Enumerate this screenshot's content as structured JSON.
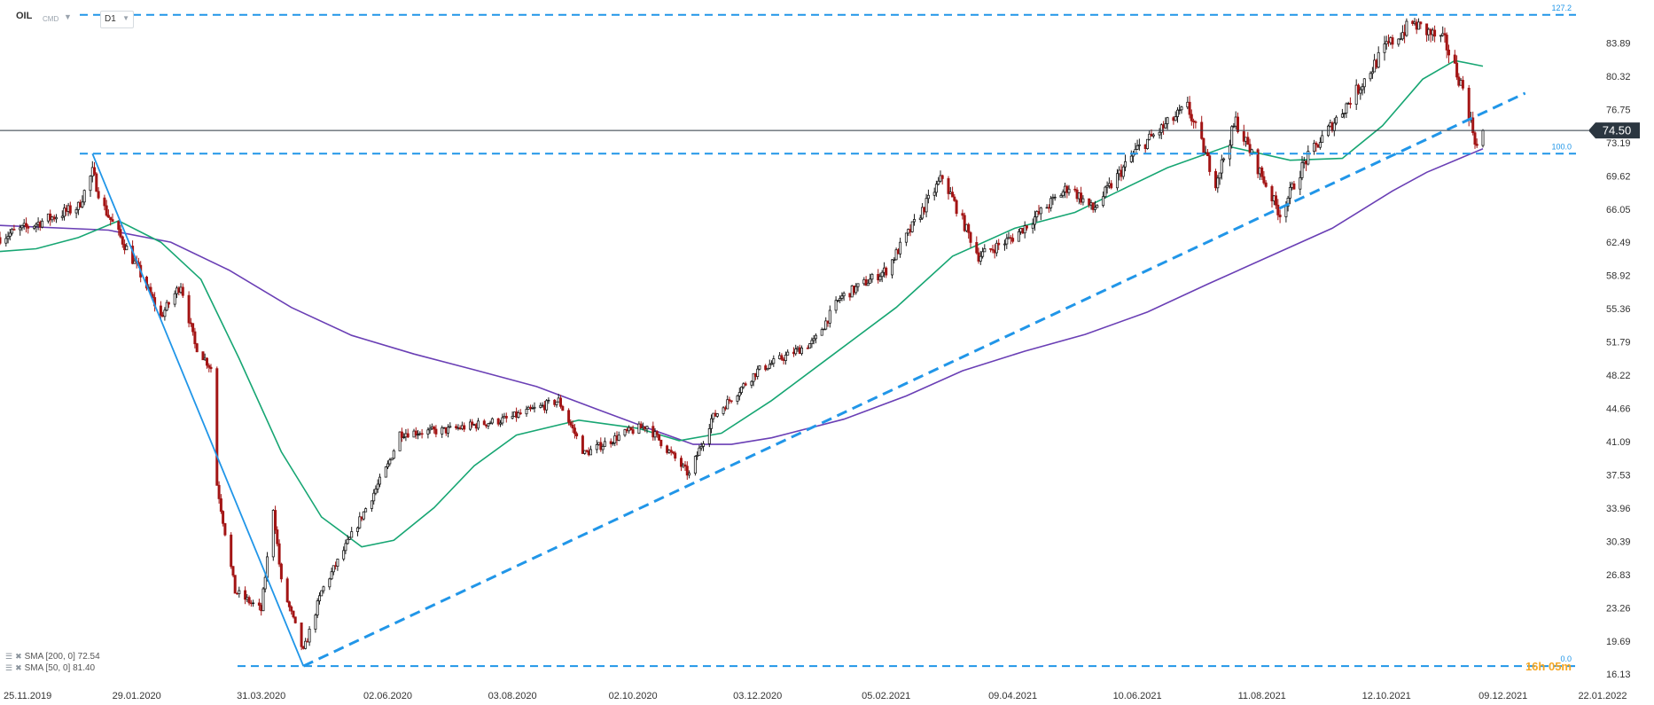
{
  "header": {
    "symbol": "OIL",
    "market": "CMD",
    "timeframe": "D1",
    "symbol_dropdown_icon": "chevron-down-icon",
    "timeframe_dropdown_icon": "chevron-down-icon"
  },
  "legend": [
    {
      "label": "SMA [200, 0] 72.54",
      "color": "#6a3fb5",
      "icons": [
        "settings-icon",
        "close-icon"
      ]
    },
    {
      "label": "SMA [50, 0] 81.40",
      "color": "#17a673",
      "icons": [
        "settings-icon",
        "close-icon"
      ]
    }
  ],
  "timer_overlay": "16h 05m",
  "colors": {
    "bull_candle": "#1b1b1b",
    "bear_candle": "#a31515",
    "sma200": "#6a3fb5",
    "sma50": "#17a673",
    "fib_lines": "#2196e8",
    "trend_line": "#2196e8",
    "price_line": "#2b3640",
    "price_badge_bg": "#2b3640",
    "price_badge_text": "#ffffff",
    "axis_text": "#333333",
    "timer_text": "#f5a623"
  },
  "chart_data": {
    "type": "candlestick",
    "instrument": "OIL",
    "timeframe": "D1",
    "x_type": "date",
    "x_range": [
      "2019-11-22",
      "2022-01-24"
    ],
    "y_range": [
      15.2,
      88.5
    ],
    "x_tick_labels": [
      "25.11.2019",
      "29.01.2020",
      "31.03.2020",
      "02.06.2020",
      "03.08.2020",
      "02.10.2020",
      "03.12.2020",
      "05.02.2021",
      "09.04.2021",
      "10.06.2021",
      "11.08.2021",
      "12.10.2021",
      "09.12.2021",
      "22.01.2022"
    ],
    "x_tick_values": [
      "2019-11-25",
      "2020-01-29",
      "2020-03-31",
      "2020-06-02",
      "2020-08-03",
      "2020-10-02",
      "2020-12-03",
      "2021-02-05",
      "2021-04-09",
      "2021-06-10",
      "2021-08-11",
      "2021-10-12",
      "2021-12-09",
      "2022-01-22"
    ],
    "y_tick_labels": [
      "83.89",
      "80.32",
      "76.75",
      "73.19",
      "69.62",
      "66.05",
      "62.49",
      "58.92",
      "55.36",
      "51.79",
      "48.22",
      "44.66",
      "41.09",
      "37.53",
      "33.96",
      "30.39",
      "26.83",
      "23.26",
      "19.69",
      "16.13"
    ],
    "y_tick_values": [
      83.89,
      80.32,
      76.75,
      73.19,
      69.62,
      66.05,
      62.49,
      58.92,
      55.36,
      51.79,
      48.22,
      44.66,
      41.09,
      37.53,
      33.96,
      30.39,
      26.83,
      23.26,
      19.69,
      16.13
    ],
    "current_price": 74.5,
    "price_path": [
      [
        "2019-11-22",
        63.0
      ],
      [
        "2019-12-10",
        64.5
      ],
      [
        "2019-12-31",
        66.3
      ],
      [
        "2020-01-07",
        70.0
      ],
      [
        "2020-01-12",
        66.5
      ],
      [
        "2020-01-30",
        59.5
      ],
      [
        "2020-02-10",
        54.5
      ],
      [
        "2020-02-20",
        58.0
      ],
      [
        "2020-02-27",
        51.5
      ],
      [
        "2020-03-06",
        49.0
      ],
      [
        "2020-03-09",
        36.5
      ],
      [
        "2020-03-18",
        25.0
      ],
      [
        "2020-03-31",
        23.0
      ],
      [
        "2020-04-06",
        34.0
      ],
      [
        "2020-04-10",
        26.0
      ],
      [
        "2020-04-21",
        18.5
      ],
      [
        "2020-04-30",
        25.0
      ],
      [
        "2020-05-15",
        31.0
      ],
      [
        "2020-06-02",
        38.5
      ],
      [
        "2020-06-08",
        42.0
      ],
      [
        "2020-07-01",
        42.3
      ],
      [
        "2020-07-31",
        43.5
      ],
      [
        "2020-08-26",
        45.5
      ],
      [
        "2020-09-08",
        39.8
      ],
      [
        "2020-09-28",
        42.0
      ],
      [
        "2020-10-09",
        42.8
      ],
      [
        "2020-10-30",
        37.5
      ],
      [
        "2020-11-10",
        43.5
      ],
      [
        "2020-12-03",
        48.7
      ],
      [
        "2020-12-31",
        51.8
      ],
      [
        "2021-01-13",
        56.5
      ],
      [
        "2021-02-05",
        59.5
      ],
      [
        "2021-03-05",
        69.5
      ],
      [
        "2021-03-23",
        61.0
      ],
      [
        "2021-04-09",
        63.0
      ],
      [
        "2021-05-07",
        68.5
      ],
      [
        "2021-05-19",
        66.0
      ],
      [
        "2021-06-10",
        72.5
      ],
      [
        "2021-07-05",
        77.0
      ],
      [
        "2021-07-19",
        69.0
      ],
      [
        "2021-07-29",
        75.5
      ],
      [
        "2021-08-20",
        65.5
      ],
      [
        "2021-09-01",
        71.0
      ],
      [
        "2021-09-28",
        79.0
      ],
      [
        "2021-10-12",
        83.5
      ],
      [
        "2021-10-25",
        86.0
      ],
      [
        "2021-11-10",
        84.0
      ],
      [
        "2021-11-19",
        79.0
      ],
      [
        "2021-11-26",
        72.7
      ],
      [
        "2021-11-29",
        74.5
      ]
    ],
    "series": [
      {
        "name": "SMA [200, 0] 72.54",
        "points": [
          [
            "2019-11-22",
            64.3
          ],
          [
            "2020-01-15",
            63.8
          ],
          [
            "2020-02-15",
            62.5
          ],
          [
            "2020-03-15",
            59.5
          ],
          [
            "2020-04-15",
            55.5
          ],
          [
            "2020-05-15",
            52.5
          ],
          [
            "2020-06-15",
            50.5
          ],
          [
            "2020-07-15",
            48.8
          ],
          [
            "2020-08-15",
            47.0
          ],
          [
            "2020-09-15",
            44.5
          ],
          [
            "2020-10-10",
            42.5
          ],
          [
            "2020-11-01",
            40.8
          ],
          [
            "2020-11-20",
            40.8
          ],
          [
            "2020-12-10",
            41.5
          ],
          [
            "2021-01-15",
            43.5
          ],
          [
            "2021-02-15",
            46.0
          ],
          [
            "2021-03-15",
            48.7
          ],
          [
            "2021-04-15",
            50.8
          ],
          [
            "2021-05-15",
            52.6
          ],
          [
            "2021-06-15",
            55.0
          ],
          [
            "2021-07-15",
            58.0
          ],
          [
            "2021-08-15",
            61.0
          ],
          [
            "2021-09-15",
            64.0
          ],
          [
            "2021-10-15",
            68.0
          ],
          [
            "2021-11-01",
            70.0
          ],
          [
            "2021-11-29",
            72.54
          ]
        ]
      },
      {
        "name": "SMA [50, 0] 81.40",
        "points": [
          [
            "2019-11-22",
            61.5
          ],
          [
            "2019-12-10",
            61.8
          ],
          [
            "2019-12-31",
            63.0
          ],
          [
            "2020-01-20",
            64.8
          ],
          [
            "2020-02-10",
            62.5
          ],
          [
            "2020-03-01",
            58.5
          ],
          [
            "2020-03-20",
            50.0
          ],
          [
            "2020-04-10",
            40.0
          ],
          [
            "2020-04-30",
            33.0
          ],
          [
            "2020-05-20",
            29.8
          ],
          [
            "2020-06-05",
            30.5
          ],
          [
            "2020-06-25",
            34.0
          ],
          [
            "2020-07-15",
            38.5
          ],
          [
            "2020-08-05",
            41.8
          ],
          [
            "2020-09-05",
            43.4
          ],
          [
            "2020-10-05",
            42.5
          ],
          [
            "2020-10-25",
            41.2
          ],
          [
            "2020-11-15",
            42.0
          ],
          [
            "2020-12-10",
            45.5
          ],
          [
            "2021-01-10",
            50.5
          ],
          [
            "2021-02-10",
            55.5
          ],
          [
            "2021-03-10",
            61.0
          ],
          [
            "2021-04-10",
            64.0
          ],
          [
            "2021-05-10",
            65.7
          ],
          [
            "2021-06-01",
            68.0
          ],
          [
            "2021-06-25",
            70.5
          ],
          [
            "2021-07-25",
            72.8
          ],
          [
            "2021-08-25",
            71.3
          ],
          [
            "2021-09-20",
            71.5
          ],
          [
            "2021-10-10",
            75.0
          ],
          [
            "2021-10-30",
            80.0
          ],
          [
            "2021-11-15",
            82.0
          ],
          [
            "2021-11-29",
            81.4
          ]
        ]
      }
    ],
    "fibonacci": [
      {
        "label": "127.2",
        "price": 86.9
      },
      {
        "label": "100.0",
        "price": 72.0
      },
      {
        "label": "0.0",
        "price": 17.0
      }
    ],
    "trendlines": [
      {
        "from": [
          "2020-04-21",
          17.0
        ],
        "to": [
          "2021-12-20",
          78.5
        ],
        "style": "dashed"
      },
      {
        "from": [
          "2020-01-07",
          72.0
        ],
        "to": [
          "2020-04-21",
          17.0
        ],
        "style": "solid"
      }
    ]
  }
}
